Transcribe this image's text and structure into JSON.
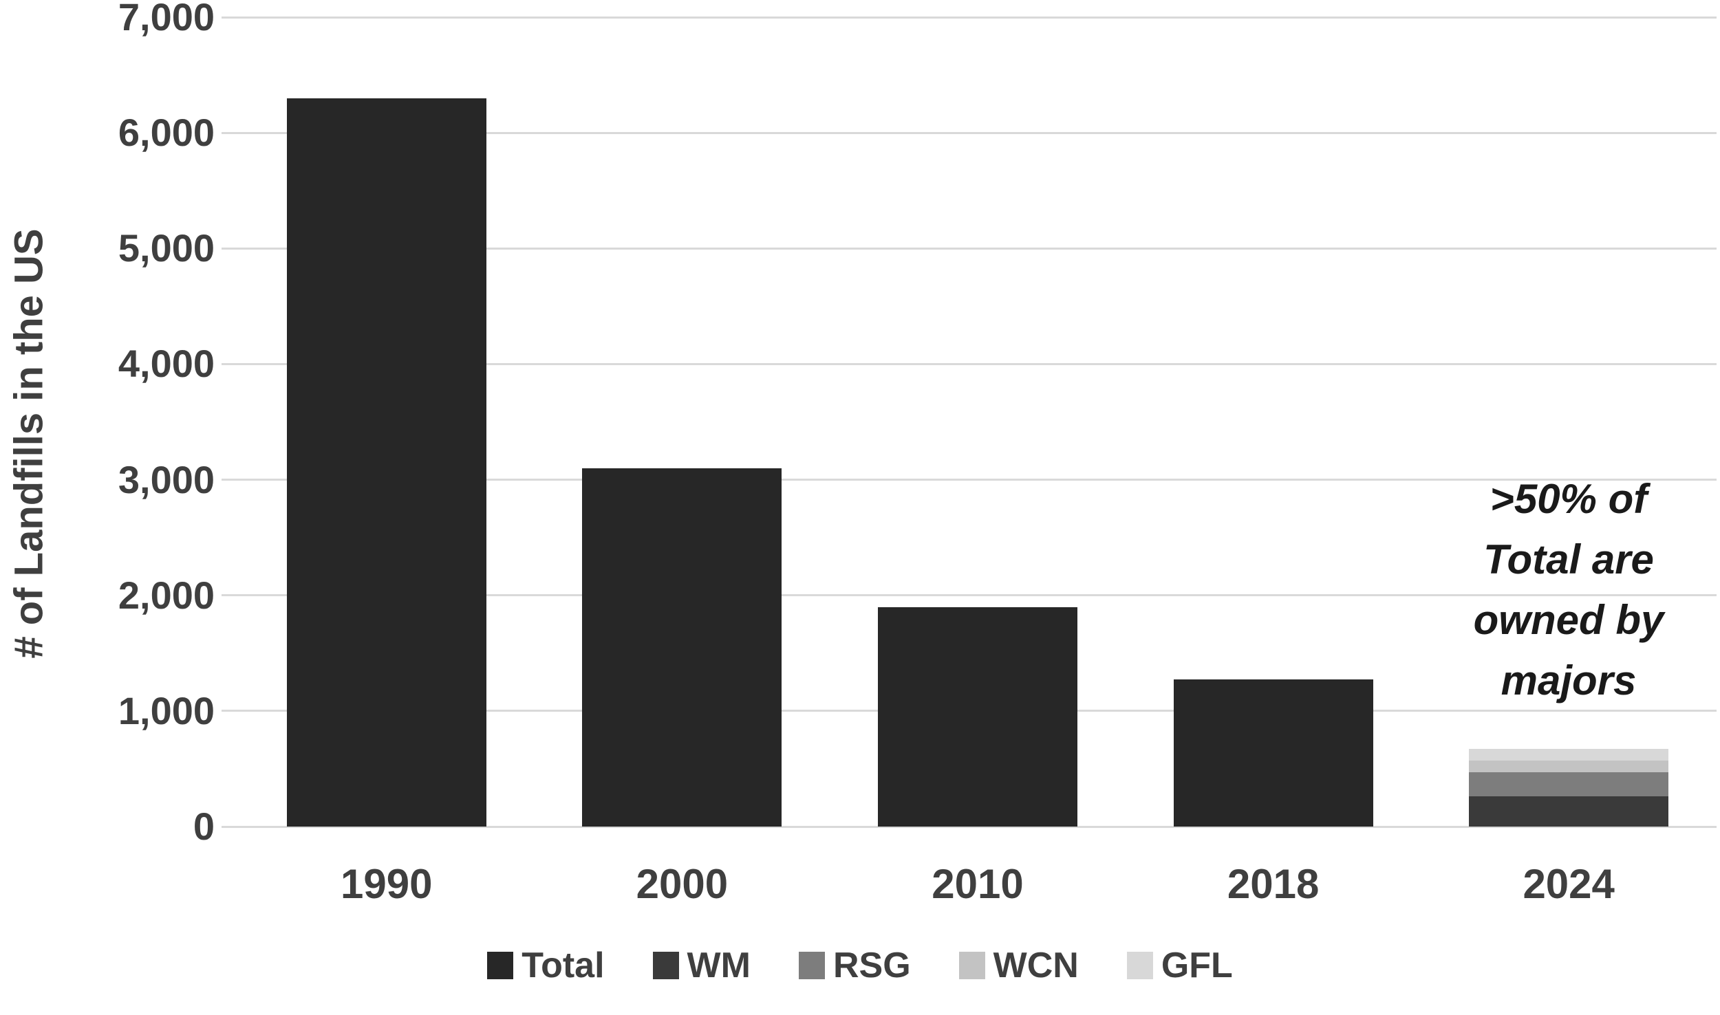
{
  "chart_data": {
    "type": "bar",
    "title": "",
    "xlabel": "",
    "ylabel": "# of Landfills in the US",
    "ylim": [
      0,
      7000
    ],
    "ytick_step": 1000,
    "ytick_labels": [
      "0",
      "1,000",
      "2,000",
      "3,000",
      "4,000",
      "5,000",
      "6,000",
      "7,000"
    ],
    "grid": true,
    "stacked": true,
    "legend_position": "bottom",
    "categories": [
      "1990",
      "2000",
      "2010",
      "2018",
      "2024"
    ],
    "series": [
      {
        "name": "Total",
        "color": "#272727",
        "values": [
          6300,
          3100,
          1900,
          1270,
          null
        ]
      },
      {
        "name": "WM",
        "color": "#3a3a3a",
        "values": [
          null,
          null,
          null,
          null,
          260
        ]
      },
      {
        "name": "RSG",
        "color": "#7d7d7d",
        "values": [
          null,
          null,
          null,
          null,
          210
        ]
      },
      {
        "name": "WCN",
        "color": "#c3c3c3",
        "values": [
          null,
          null,
          null,
          null,
          100
        ]
      },
      {
        "name": "GFL",
        "color": "#d8d8d8",
        "values": [
          null,
          null,
          null,
          null,
          100
        ]
      }
    ],
    "annotation": {
      "text": ">50% of\nTotal are\nowned by\nmajors",
      "target_category": "2024"
    },
    "colors": {
      "gridline": "#d9d9d9",
      "axis_text": "#3f3f3f",
      "annotation_text": "#1a1a1a",
      "background": "#ffffff"
    }
  }
}
